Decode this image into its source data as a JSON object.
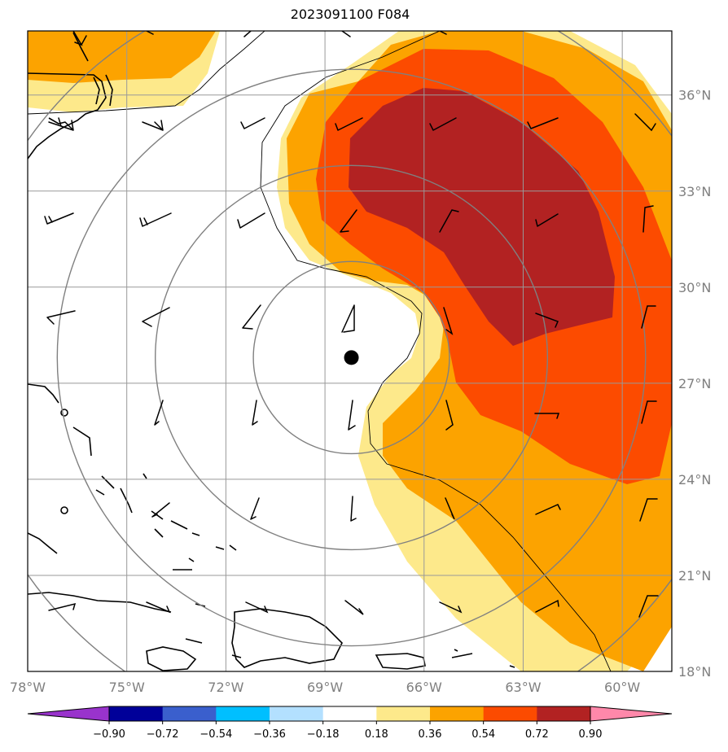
{
  "title": "2023091100 F084",
  "map": {
    "lon_range": [
      -78,
      -58.5
    ],
    "lat_range": [
      18,
      38
    ],
    "lon_ticks": [
      -78,
      -75,
      -72,
      -69,
      -66,
      -63,
      -60
    ],
    "lon_tick_labels": [
      "78°W",
      "75°W",
      "72°W",
      "69°W",
      "66°W",
      "63°W",
      "60°W"
    ],
    "lat_ticks": [
      36,
      33,
      30,
      27,
      24,
      21,
      18
    ],
    "lat_tick_labels": [
      "36°N",
      "33°N",
      "30°N",
      "27°N",
      "24°N",
      "21°N",
      "18°N"
    ],
    "grid": true,
    "center_marker": {
      "lon": -68.2,
      "lat": 27.8,
      "color": "#000000"
    },
    "range_rings": {
      "center_lon": -68.2,
      "center_lat": 27.8,
      "radii_deg": [
        3,
        6,
        9,
        12
      ],
      "color": "#808080"
    },
    "fill_levels": [
      {
        "min": 0.18,
        "color": "#fde98b"
      },
      {
        "min": 0.36,
        "color": "#fca300"
      },
      {
        "min": 0.54,
        "color": "#fc4b00"
      },
      {
        "min": 0.72,
        "color": "#b22222"
      }
    ]
  },
  "colorbar": {
    "boundaries": [
      -0.9,
      -0.72,
      -0.54,
      -0.36,
      -0.18,
      0.18,
      0.36,
      0.54,
      0.72,
      0.9
    ],
    "tick_labels": [
      "−0.90",
      "−0.72",
      "−0.54",
      "−0.36",
      "−0.18",
      "0.18",
      "0.36",
      "0.54",
      "0.72",
      "0.90"
    ],
    "colors": [
      "#9933cc",
      "#000099",
      "#3a5fcd",
      "#00bfff",
      "#b3e0ff",
      "#ffffff",
      "#fde98b",
      "#fca300",
      "#fc4b00",
      "#b22222",
      "#ff88aa"
    ],
    "extend": "both"
  }
}
